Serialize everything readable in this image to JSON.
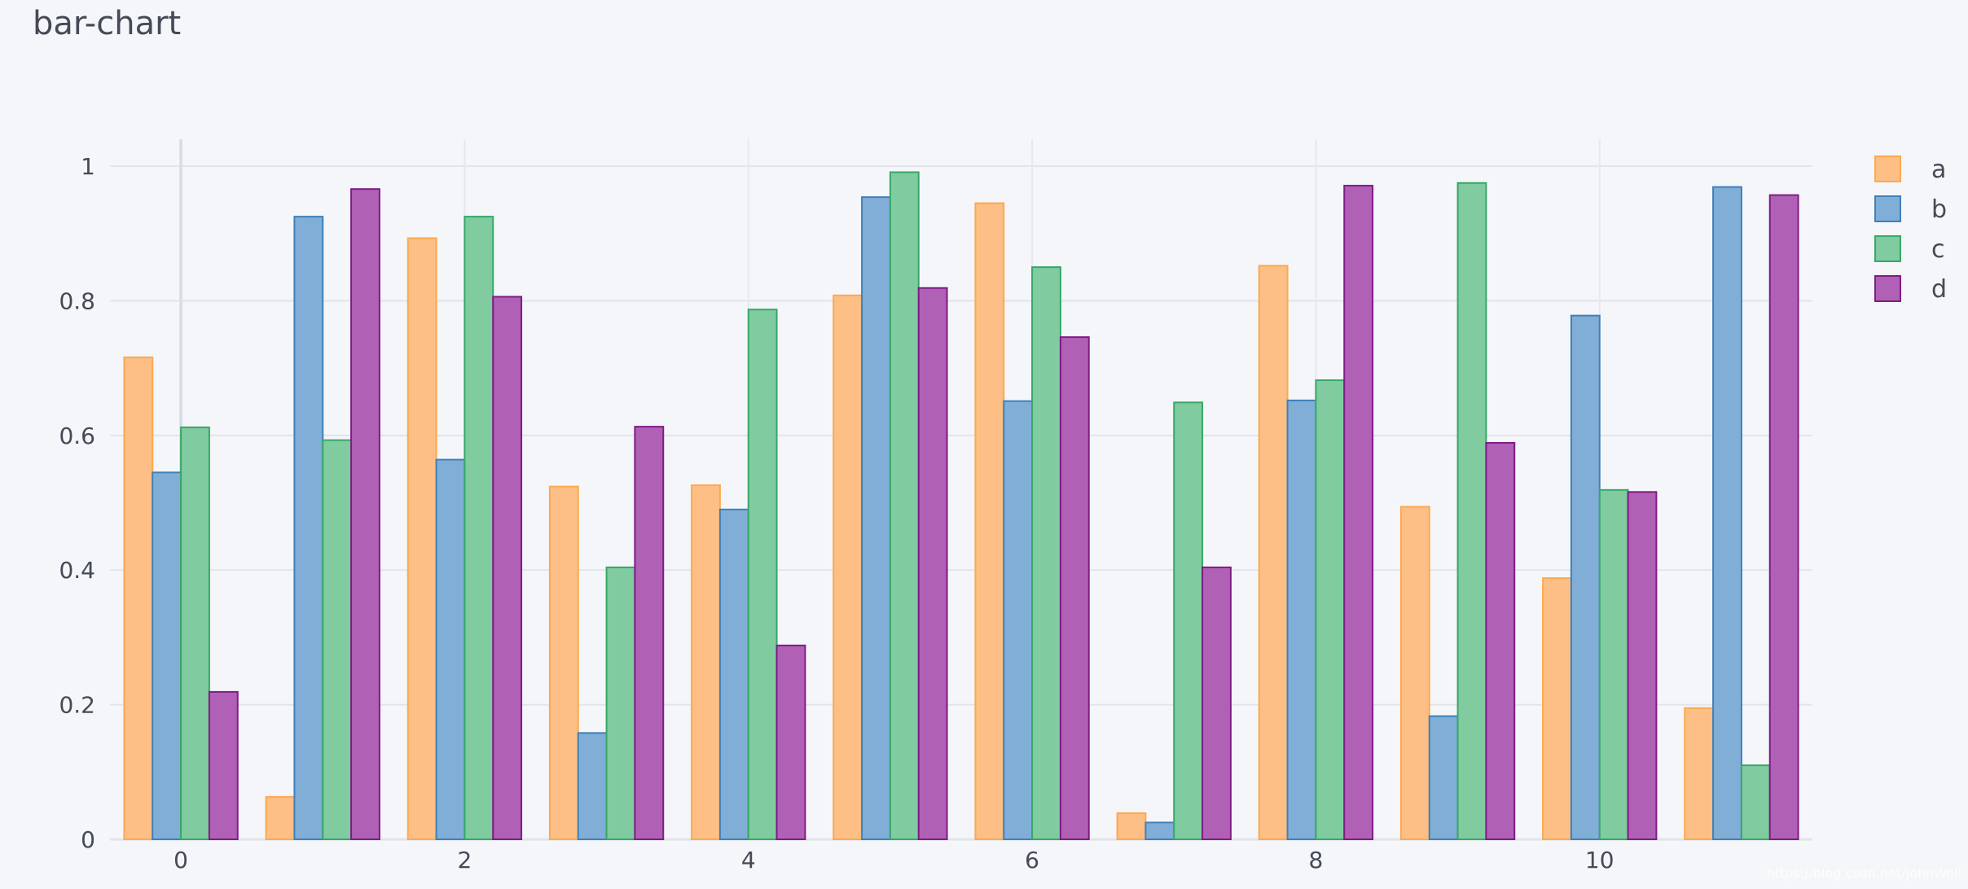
{
  "chart_data": {
    "type": "bar",
    "title": "bar-chart",
    "xlabel": "",
    "ylabel": "",
    "x": [
      0,
      1,
      2,
      3,
      4,
      5,
      6,
      7,
      8,
      9,
      10,
      11
    ],
    "x_tick_labels": [
      "0",
      "2",
      "4",
      "6",
      "8",
      "10"
    ],
    "y_tick_labels": [
      "0",
      "0.2",
      "0.4",
      "0.6",
      "0.8",
      "1"
    ],
    "ylim": [
      0,
      1.04
    ],
    "grid": true,
    "legend_position": "top-right",
    "series": [
      {
        "name": "a",
        "values": [
          0.716,
          0.063,
          0.893,
          0.524,
          0.526,
          0.808,
          0.945,
          0.039,
          0.852,
          0.494,
          0.388,
          0.195
        ],
        "color": "#fdbf85",
        "line_color": "#fca94f"
      },
      {
        "name": "b",
        "values": [
          0.545,
          0.925,
          0.564,
          0.158,
          0.49,
          0.954,
          0.651,
          0.025,
          0.652,
          0.183,
          0.778,
          0.969
        ],
        "color": "#81aed6",
        "line_color": "#3f80ba"
      },
      {
        "name": "c",
        "values": [
          0.612,
          0.593,
          0.925,
          0.404,
          0.787,
          0.991,
          0.85,
          0.649,
          0.682,
          0.975,
          0.519,
          0.11
        ],
        "color": "#80cb9f",
        "line_color": "#36a867"
      },
      {
        "name": "d",
        "values": [
          0.219,
          0.966,
          0.806,
          0.613,
          0.288,
          0.819,
          0.746,
          0.404,
          0.971,
          0.589,
          0.516,
          0.957
        ],
        "color": "#b061b5",
        "line_color": "#7f1b86"
      }
    ]
  },
  "watermark": "https://blog.csdn.net/JohnWell"
}
